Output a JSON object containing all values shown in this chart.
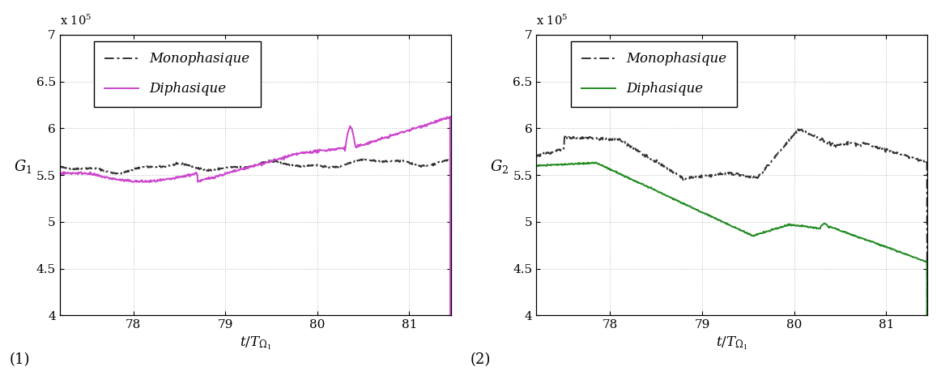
{
  "xlim": [
    77.2,
    81.45
  ],
  "ylim": [
    400000.0,
    700000.0
  ],
  "xticks": [
    78,
    79,
    80,
    81
  ],
  "yticks": [
    400000.0,
    450000.0,
    500000.0,
    550000.0,
    600000.0,
    650000.0,
    700000.0
  ],
  "ylabel1": "$G_1$",
  "ylabel2": "$G_2$",
  "xlabel": "$t/T_{\\Omega_1}$",
  "legend_mono": "Monophasique",
  "legend_di": "Diphasique",
  "mono_color": "#333333",
  "di_color1": "#cc44cc",
  "di_color2": "#228B22",
  "bg_color": "#ffffff",
  "grid_color": "#bbbbbb",
  "label1": "(1)",
  "label2": "(2)",
  "exponent_label": "x 10$^5$",
  "linewidth_mono": 1.4,
  "linewidth_di": 1.4
}
